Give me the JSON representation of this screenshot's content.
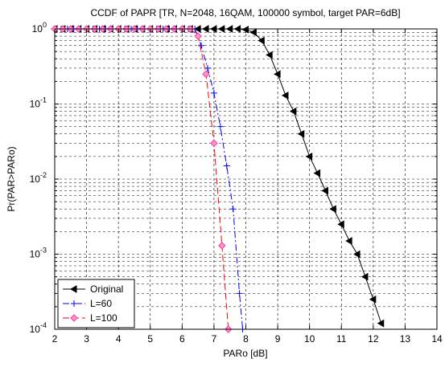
{
  "chart_data": {
    "type": "line",
    "title": "CCDF of PAPR [TR, N=2048, 16QAM, 100000 symbol, target PAR=6dB]",
    "xlabel": "PARo [dB]",
    "ylabel": "Pr(PAR>PARo)",
    "xlim": [
      2,
      14
    ],
    "xticks": [
      2,
      3,
      4,
      5,
      6,
      7,
      8,
      9,
      10,
      11,
      12,
      13,
      14
    ],
    "ylim": [
      0.0001,
      1
    ],
    "ylog": true,
    "yticks": [
      {
        "value": 1,
        "label": "10",
        "exponent": "0"
      },
      {
        "value": 0.1,
        "label": "10",
        "exponent": "-1"
      },
      {
        "value": 0.01,
        "label": "10",
        "exponent": "-2"
      },
      {
        "value": 0.001,
        "label": "10",
        "exponent": "-3"
      },
      {
        "value": 0.0001,
        "label": "10",
        "exponent": "-4"
      }
    ],
    "grid": true,
    "minor_grid": true,
    "legend": "lower left",
    "series": [
      {
        "name": "Original",
        "color": "#000000",
        "dash": "",
        "marker": "triangle-left",
        "x": [
          2,
          2.25,
          2.5,
          2.75,
          3,
          3.25,
          3.5,
          3.75,
          4,
          4.25,
          4.5,
          4.75,
          5,
          5.25,
          5.5,
          5.75,
          6,
          6.25,
          6.5,
          6.75,
          7,
          7.25,
          7.5,
          7.75,
          8,
          8.25,
          8.5,
          8.75,
          9,
          9.25,
          9.5,
          9.75,
          10,
          10.25,
          10.5,
          10.75,
          11,
          11.25,
          11.5,
          11.75,
          12,
          12.25
        ],
        "values": [
          1,
          1,
          1,
          1,
          1,
          1,
          1,
          1,
          1,
          1,
          1,
          1,
          1,
          1,
          1,
          1,
          1,
          1,
          1,
          1,
          1,
          1,
          1,
          1,
          0.98,
          0.9,
          0.7,
          0.45,
          0.25,
          0.13,
          0.08,
          0.04,
          0.02,
          0.012,
          0.007,
          0.004,
          0.0025,
          0.0015,
          0.001,
          0.0005,
          0.00025,
          0.00012
        ]
      },
      {
        "name": "L=60",
        "color": "#0000ff",
        "dash": "8 3 2 3",
        "marker": "plus",
        "x": [
          2,
          2.2,
          2.4,
          2.6,
          2.8,
          3,
          3.2,
          3.4,
          3.6,
          3.8,
          4,
          4.2,
          4.4,
          4.6,
          4.8,
          5,
          5.2,
          5.4,
          5.6,
          5.8,
          6,
          6.2,
          6.4,
          6.6,
          6.8,
          7,
          7.2,
          7.4,
          7.6,
          7.8,
          7.9
        ],
        "values": [
          1,
          1,
          1,
          1,
          1,
          1,
          1,
          1,
          1,
          1,
          1,
          1,
          1,
          1,
          1,
          1,
          1,
          1,
          1,
          1,
          1,
          1,
          1,
          0.6,
          0.3,
          0.14,
          0.05,
          0.015,
          0.004,
          0.0003,
          0.0001
        ]
      },
      {
        "name": "L=100",
        "color": "#ff0000",
        "dash": "8 4",
        "marker": "diamond",
        "x": [
          2,
          2.25,
          2.5,
          2.75,
          3,
          3.25,
          3.5,
          3.75,
          4,
          4.25,
          4.5,
          4.75,
          5,
          5.25,
          5.5,
          5.75,
          6,
          6.25,
          6.5,
          6.75,
          7,
          7.25,
          7.45
        ],
        "values": [
          1,
          1,
          1,
          1,
          1,
          1,
          1,
          1,
          1,
          1,
          1,
          1,
          1,
          1,
          1,
          1,
          1,
          1,
          0.8,
          0.25,
          0.03,
          0.0013,
          0.0001
        ]
      }
    ]
  }
}
